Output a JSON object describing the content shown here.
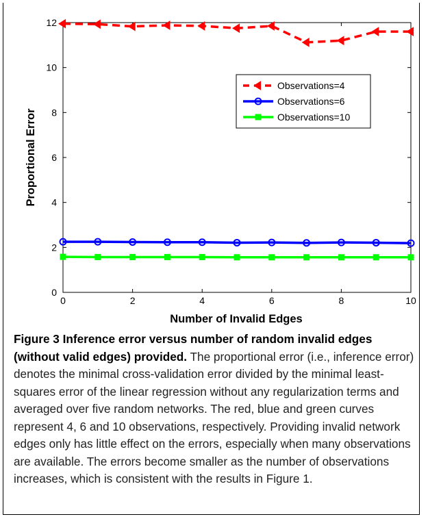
{
  "chart_data": {
    "type": "line",
    "title": "",
    "xlabel": "Number of Invalid Edges",
    "ylabel": "Proportional Error",
    "xlim": [
      0,
      10
    ],
    "ylim": [
      0,
      12
    ],
    "xticks": [
      0,
      2,
      4,
      6,
      8,
      10
    ],
    "yticks": [
      0,
      2,
      4,
      6,
      8,
      10,
      12
    ],
    "grid": false,
    "legend_position": "upper-right",
    "x": [
      0,
      1,
      2,
      3,
      4,
      5,
      6,
      7,
      8,
      9,
      10
    ],
    "series": [
      {
        "name": "Observations=4",
        "color": "#ff0000",
        "line_style": "dashed",
        "marker": "left-triangle",
        "values": [
          11.95,
          11.93,
          11.83,
          11.88,
          11.85,
          11.75,
          11.85,
          11.12,
          11.2,
          11.6,
          11.6
        ]
      },
      {
        "name": "Observations=6",
        "color": "#0000ff",
        "line_style": "solid",
        "marker": "circle",
        "values": [
          2.25,
          2.25,
          2.24,
          2.23,
          2.23,
          2.21,
          2.22,
          2.2,
          2.22,
          2.21,
          2.19
        ]
      },
      {
        "name": "Observations=10",
        "color": "#00ff00",
        "line_style": "solid",
        "marker": "square",
        "values": [
          1.58,
          1.57,
          1.57,
          1.57,
          1.57,
          1.56,
          1.56,
          1.56,
          1.56,
          1.56,
          1.56
        ]
      }
    ]
  },
  "caption": {
    "heading": "Figure 3 Inference error versus number of random invalid edges (without valid edges) provided.",
    "body": "The proportional error (i.e., inference error) denotes the minimal cross-validation error divided by the minimal least-squares error of the linear regression without any regularization terms and averaged over five random networks. The red, blue and green curves represent 4, 6 and 10 observations, respectively. Providing invalid network edges only has little effect on the errors, especially when many observations are available. The errors become smaller as the number of observations increases, which is consistent with the results in Figure 1."
  }
}
